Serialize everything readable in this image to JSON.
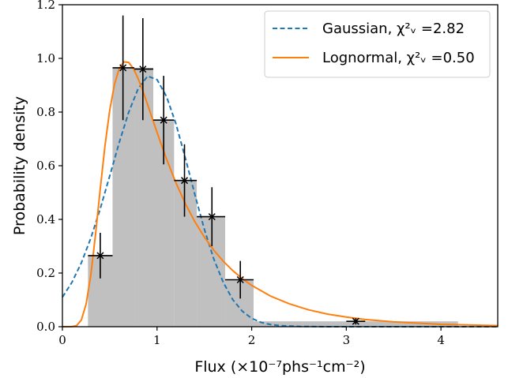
{
  "chart_data": {
    "type": "bar",
    "xlabel": "Flux (×10⁻⁷phs⁻¹cm⁻²)",
    "ylabel": "Probability density",
    "xlim": [
      0,
      4.6
    ],
    "ylim": [
      0,
      1.2
    ],
    "xticks": [
      0,
      1,
      2,
      3,
      4
    ],
    "yticks": [
      0.0,
      0.2,
      0.4,
      0.6,
      0.8,
      1.0,
      1.2
    ],
    "xtick_labels": [
      "0",
      "1",
      "2",
      "3",
      "4"
    ],
    "ytick_labels": [
      "0.0",
      "0.2",
      "0.4",
      "0.6",
      "0.8",
      "1.0",
      "1.2"
    ],
    "grid": false,
    "legend_position": "top-right",
    "histogram": {
      "bars": [
        {
          "x0": 0.27,
          "x1": 0.53,
          "value": 0.265
        },
        {
          "x0": 0.53,
          "x1": 0.76,
          "value": 0.965
        },
        {
          "x0": 0.76,
          "x1": 0.96,
          "value": 0.965
        },
        {
          "x0": 0.96,
          "x1": 1.18,
          "value": 0.77
        },
        {
          "x0": 1.18,
          "x1": 1.42,
          "value": 0.545
        },
        {
          "x0": 1.42,
          "x1": 1.72,
          "value": 0.41
        },
        {
          "x0": 1.72,
          "x1": 2.02,
          "value": 0.175
        },
        {
          "x0": 2.02,
          "x1": 4.18,
          "value": 0.02
        }
      ],
      "color": "#c0c0c0"
    },
    "error_points": [
      {
        "x": 0.4,
        "y": 0.265,
        "xerr_lo": 0.13,
        "xerr_hi": 0.13,
        "yerr_lo": 0.085,
        "yerr_hi": 0.085
      },
      {
        "x": 0.64,
        "y": 0.965,
        "xerr_lo": 0.11,
        "xerr_hi": 0.12,
        "yerr_lo": 0.195,
        "yerr_hi": 0.195
      },
      {
        "x": 0.85,
        "y": 0.96,
        "xerr_lo": 0.09,
        "xerr_hi": 0.11,
        "yerr_lo": 0.19,
        "yerr_hi": 0.19
      },
      {
        "x": 1.07,
        "y": 0.77,
        "xerr_lo": 0.11,
        "xerr_hi": 0.11,
        "yerr_lo": 0.165,
        "yerr_hi": 0.165
      },
      {
        "x": 1.29,
        "y": 0.545,
        "xerr_lo": 0.11,
        "xerr_hi": 0.13,
        "yerr_lo": 0.135,
        "yerr_hi": 0.135
      },
      {
        "x": 1.58,
        "y": 0.41,
        "xerr_lo": 0.16,
        "xerr_hi": 0.14,
        "yerr_lo": 0.11,
        "yerr_hi": 0.11
      },
      {
        "x": 1.88,
        "y": 0.175,
        "xerr_lo": 0.16,
        "xerr_hi": 0.14,
        "yerr_lo": 0.07,
        "yerr_hi": 0.07
      },
      {
        "x": 3.1,
        "y": 0.02,
        "xerr_lo": 0.1,
        "xerr_hi": 0.1,
        "yerr_lo": 0.012,
        "yerr_hi": 0.012
      }
    ],
    "series": [
      {
        "name": "Gaussian, χ²ᵥ =2.82",
        "style": "dashed",
        "color": "#1f77b4",
        "x": [
          0.0,
          0.1,
          0.2,
          0.3,
          0.4,
          0.5,
          0.6,
          0.7,
          0.8,
          0.9,
          1.0,
          1.1,
          1.2,
          1.3,
          1.4,
          1.5,
          1.6,
          1.7,
          1.8,
          1.9,
          2.0,
          2.1,
          2.2,
          2.3,
          2.5,
          2.8,
          3.2,
          3.6,
          4.0,
          4.6
        ],
        "y": [
          0.11,
          0.165,
          0.238,
          0.33,
          0.44,
          0.562,
          0.686,
          0.799,
          0.887,
          0.934,
          0.921,
          0.858,
          0.756,
          0.627,
          0.492,
          0.363,
          0.252,
          0.165,
          0.101,
          0.058,
          0.031,
          0.016,
          0.008,
          0.004,
          0.001,
          0.0,
          0.0,
          0.0,
          0.0,
          0.0
        ]
      },
      {
        "name": "Lognormal, χ²ᵥ =0.50",
        "style": "solid",
        "color": "#ff7f0e",
        "x": [
          0.0,
          0.1,
          0.15,
          0.2,
          0.25,
          0.3,
          0.35,
          0.4,
          0.45,
          0.5,
          0.55,
          0.6,
          0.65,
          0.7,
          0.75,
          0.8,
          0.85,
          0.9,
          0.95,
          1.0,
          1.1,
          1.2,
          1.3,
          1.4,
          1.5,
          1.6,
          1.7,
          1.8,
          1.9,
          2.0,
          2.2,
          2.4,
          2.6,
          2.8,
          3.0,
          3.2,
          3.5,
          4.0,
          4.6
        ],
        "y": [
          0.0,
          0.0003,
          0.004,
          0.025,
          0.084,
          0.192,
          0.344,
          0.514,
          0.675,
          0.807,
          0.903,
          0.962,
          0.987,
          0.985,
          0.962,
          0.925,
          0.879,
          0.828,
          0.776,
          0.724,
          0.625,
          0.536,
          0.458,
          0.391,
          0.334,
          0.285,
          0.244,
          0.209,
          0.179,
          0.154,
          0.114,
          0.085,
          0.063,
          0.047,
          0.036,
          0.027,
          0.018,
          0.009,
          0.004
        ]
      }
    ]
  }
}
